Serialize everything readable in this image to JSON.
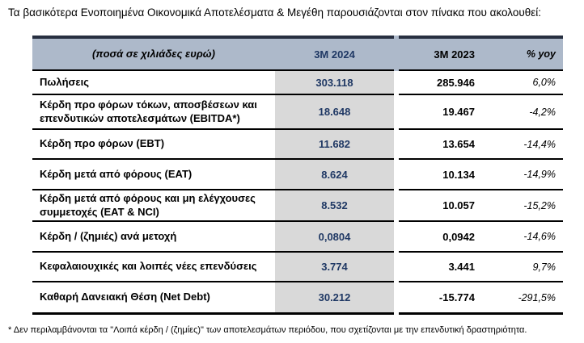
{
  "title": "Τα βασικότερα Ενοποιημένα Οικονομικά Αποτελέσματα & Μεγέθη παρουσιάζονται στον πίνακα που ακολουθεί:",
  "table": {
    "header": {
      "label": "(ποσά σε χιλιάδες ευρώ)",
      "col_2024": "3M 2024",
      "col_2023": "3M 2023",
      "col_yoy": "% yoy"
    },
    "rows": [
      {
        "label": "Πωλήσεις",
        "v2024": "303.118",
        "v2023": "285.946",
        "yoy": "6,0%"
      },
      {
        "label": "Κέρδη προ φόρων τόκων, αποσβέσεων και επενδυτικών αποτελεσμάτων (EBITDA*)",
        "v2024": "18.648",
        "v2023": "19.467",
        "yoy": "-4,2%"
      },
      {
        "label": "Κέρδη προ φόρων (EBT)",
        "v2024": "11.682",
        "v2023": "13.654",
        "yoy": "-14,4%"
      },
      {
        "label": "Κέρδη μετά από φόρους (EAT)",
        "v2024": "8.624",
        "v2023": "10.134",
        "yoy": "-14,9%"
      },
      {
        "label": "Κέρδη μετά από φόρους και μη ελέγχουσες συμμετοχές (EAT & NCI)",
        "v2024": "8.532",
        "v2023": "10.057",
        "yoy": "-15,2%"
      },
      {
        "label": "Κέρδη / (ζημιές) ανά μετοχή",
        "v2024": "0,0804",
        "v2023": "0,0942",
        "yoy": "-14,6%"
      },
      {
        "label": "Κεφαλαιουχικές και λοιπές νέες επενδύσεις",
        "v2024": "3.774",
        "v2023": "3.441",
        "yoy": "9,7%"
      },
      {
        "label": "Καθαρή Δανειακή Θέση (Net Debt)",
        "v2024": "30.212",
        "v2023": "-15.774",
        "yoy": "-291,5%"
      }
    ]
  },
  "footnote": "* Δεν περιλαμβάνονται τα \"Λοιπά κέρδη / (ζημίες)\" των αποτελεσμάτων περιόδου, που σχετίζονται με την επενδυτική δραστηριότητα.",
  "colors": {
    "header_background": "#adb9ca",
    "current_period_band": "#d9d9d9",
    "current_period_text": "#1f3864",
    "table_top_border": "#272f40",
    "table_line": "#000000"
  }
}
